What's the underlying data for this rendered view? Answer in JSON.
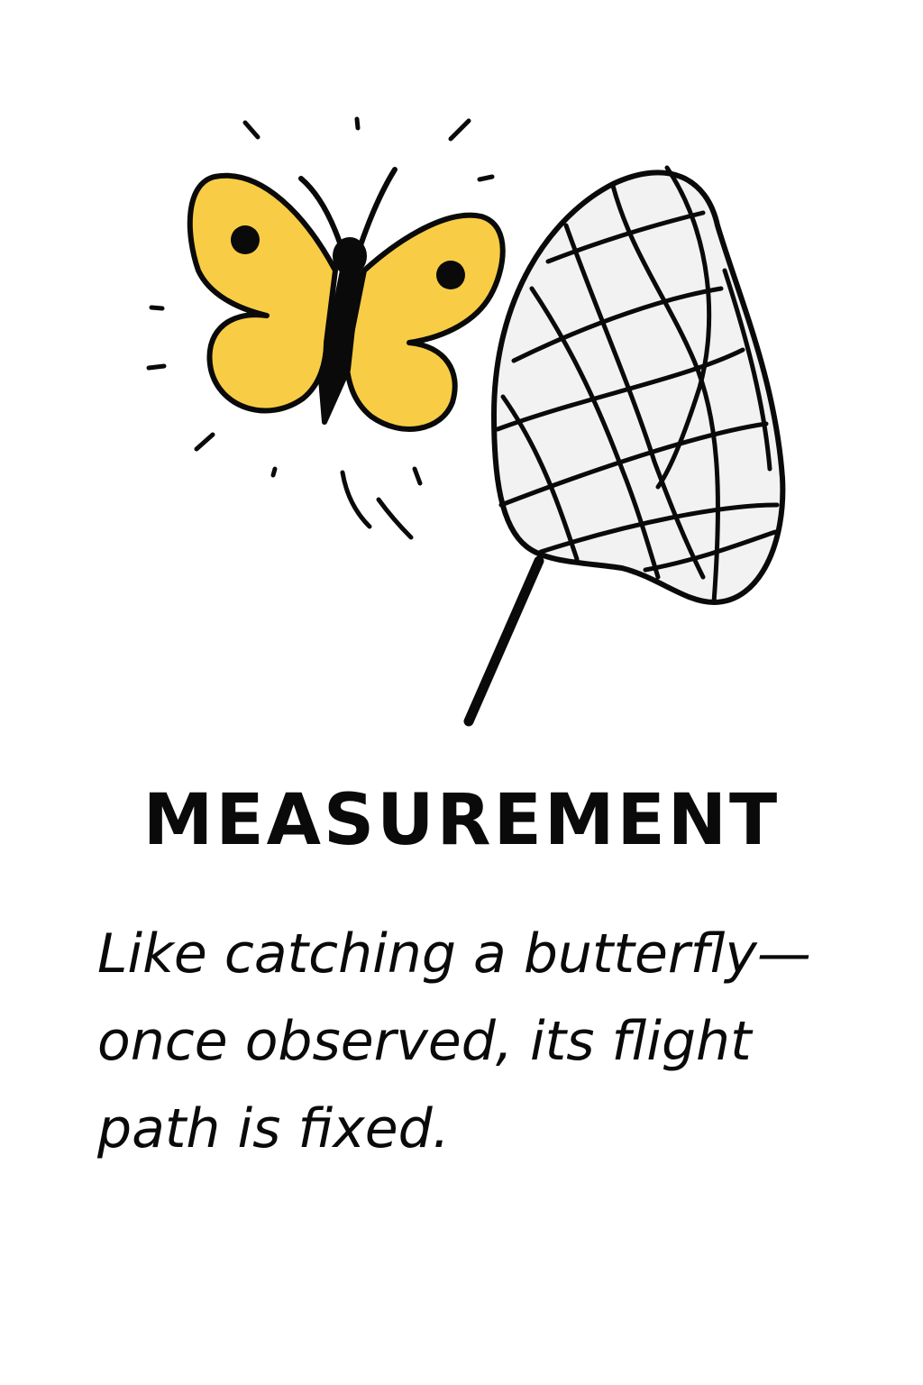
{
  "title": "MEASUREMENT",
  "caption_lines": [
    "Like catching a butterfly—",
    "once observed, its flight",
    "path is fixed."
  ],
  "illustration": {
    "butterfly_icon": "butterfly-icon",
    "net_icon": "butterfly-net-icon",
    "wing_color": "#F8CD45",
    "ink_color": "#0A0A0A",
    "net_fill": "#F2F2F2"
  }
}
